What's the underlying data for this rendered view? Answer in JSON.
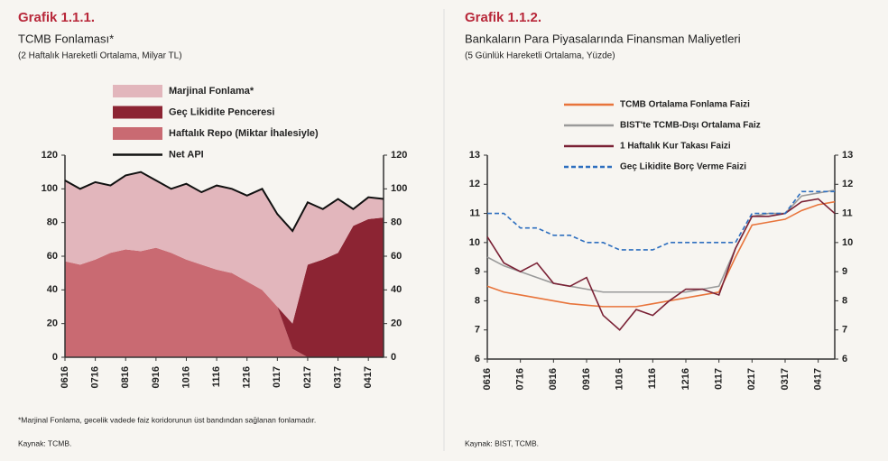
{
  "chart_data": [
    {
      "type": "area",
      "stacked": true,
      "label": "Grafik 1.1.1.",
      "title": "TCMB Fonlaması*",
      "subtitle": "(2 Haftalık Hareketli Ortalama, Milyar TL)",
      "note": "*Marjinal Fonlama, gecelik vadede faiz koridorunun üst bandından sağlanan fonlamadır.",
      "source": "Kaynak: TCMB.",
      "categories": [
        "0616",
        null,
        "0716",
        null,
        "0816",
        null,
        "0916",
        null,
        "1016",
        null,
        "1116",
        null,
        "1216",
        null,
        "0117",
        null,
        "0217",
        null,
        "0317",
        null,
        "0417",
        null
      ],
      "series": [
        {
          "name": "Haftalık Repo (Miktar İhalesiyle)",
          "color": "#c96a72",
          "values": [
            57,
            55,
            58,
            62,
            64,
            63,
            65,
            62,
            58,
            55,
            52,
            50,
            45,
            40,
            30,
            5,
            0,
            0,
            0,
            0,
            0,
            0
          ]
        },
        {
          "name": "Geç Likidite Penceresi",
          "color": "#8c2433",
          "values": [
            0,
            0,
            0,
            0,
            0,
            0,
            0,
            0,
            0,
            0,
            0,
            0,
            0,
            0,
            0,
            15,
            55,
            58,
            62,
            78,
            82,
            83
          ]
        },
        {
          "name": "Marjinal Fonlama*",
          "color": "#e2b6bc",
          "values": [
            48,
            45,
            46,
            40,
            44,
            47,
            40,
            38,
            45,
            43,
            50,
            50,
            51,
            60,
            55,
            55,
            37,
            30,
            32,
            10,
            13,
            11
          ]
        },
        {
          "name": "Net API",
          "type": "line",
          "color": "#111111",
          "values": [
            105,
            100,
            104,
            102,
            108,
            110,
            105,
            100,
            103,
            98,
            102,
            100,
            96,
            100,
            85,
            75,
            92,
            88,
            94,
            88,
            95,
            94
          ]
        }
      ],
      "ylim": [
        0,
        120
      ],
      "yticks": [
        0,
        20,
        40,
        60,
        80,
        100,
        120
      ],
      "y2lim": [
        0,
        120
      ],
      "y2ticks": [
        0,
        20,
        40,
        60,
        80,
        100,
        120
      ]
    },
    {
      "type": "line",
      "label": "Grafik 1.1.2.",
      "title": "Bankaların Para Piyasalarında Finansman Maliyetleri",
      "subtitle": "(5 Günlük Hareketli Ortalama, Yüzde)",
      "source": "Kaynak: BIST, TCMB.",
      "categories": [
        "0616",
        null,
        "0716",
        null,
        "0816",
        null,
        "0916",
        null,
        "1016",
        null,
        "1116",
        null,
        "1216",
        null,
        "0117",
        null,
        "0217",
        null,
        "0317",
        null,
        "0417",
        null
      ],
      "series": [
        {
          "name": "TCMB Ortalama Fonlama Faizi",
          "color": "#e8743b",
          "values": [
            8.5,
            8.3,
            8.2,
            8.1,
            8.0,
            7.9,
            7.85,
            7.8,
            7.8,
            7.8,
            7.9,
            8.0,
            8.1,
            8.2,
            8.3,
            9.5,
            10.6,
            10.7,
            10.8,
            11.1,
            11.3,
            11.4
          ]
        },
        {
          "name": "BIST'te TCMB-Dışı Ortalama Faiz",
          "color": "#9a9a9a",
          "values": [
            9.5,
            9.2,
            9.0,
            8.8,
            8.6,
            8.5,
            8.4,
            8.3,
            8.3,
            8.3,
            8.3,
            8.3,
            8.3,
            8.4,
            8.5,
            9.8,
            10.9,
            11.0,
            11.0,
            11.6,
            11.7,
            11.8
          ]
        },
        {
          "name": "1 Haftalık Kur Takası Faizi",
          "color": "#7a2135",
          "values": [
            10.2,
            9.3,
            9.0,
            9.3,
            8.6,
            8.5,
            8.8,
            7.5,
            7.0,
            7.7,
            7.5,
            8.0,
            8.4,
            8.4,
            8.2,
            9.8,
            10.9,
            10.9,
            11.0,
            11.4,
            11.5,
            11.0
          ]
        },
        {
          "name": "Geç Likidite Borç Verme Faizi",
          "color": "#2e6fbf",
          "dashed": true,
          "values": [
            11.0,
            11.0,
            10.5,
            10.5,
            10.25,
            10.25,
            10.0,
            10.0,
            9.75,
            9.75,
            9.75,
            10.0,
            10.0,
            10.0,
            10.0,
            10.0,
            11.0,
            11.0,
            11.0,
            11.75,
            11.75,
            11.75
          ]
        }
      ],
      "ylim": [
        6,
        13
      ],
      "yticks": [
        6,
        7,
        8,
        9,
        10,
        11,
        12,
        13
      ],
      "y2lim": [
        6,
        13
      ],
      "y2ticks": [
        6,
        7,
        8,
        9,
        10,
        11,
        12,
        13
      ]
    }
  ]
}
